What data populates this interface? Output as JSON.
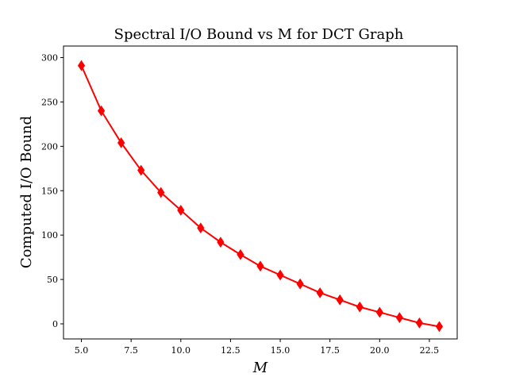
{
  "chart_data": {
    "type": "line",
    "title": "Spectral I/O Bound vs M for DCT Graph",
    "xlabel": "M",
    "ylabel": "Computed I/O Bound",
    "xlim": [
      4.1,
      23.9
    ],
    "ylim": [
      -17,
      313
    ],
    "xticks": [
      5.0,
      7.5,
      10.0,
      12.5,
      15.0,
      17.5,
      20.0,
      22.5
    ],
    "xtick_labels": [
      "5.0",
      "7.5",
      "10.0",
      "12.5",
      "15.0",
      "17.5",
      "20.0",
      "22.5"
    ],
    "yticks": [
      0,
      50,
      100,
      150,
      200,
      250,
      300
    ],
    "ytick_labels": [
      "0",
      "50",
      "100",
      "150",
      "200",
      "250",
      "300"
    ],
    "grid": false,
    "series": [
      {
        "color": "#ff0000",
        "marker": "diamond",
        "x": [
          5,
          6,
          7,
          8,
          9,
          10,
          11,
          12,
          13,
          14,
          15,
          16,
          17,
          18,
          19,
          20,
          21,
          22,
          23
        ],
        "y": [
          291,
          240,
          204,
          173,
          148,
          128,
          108,
          92,
          78,
          65,
          55,
          45,
          35,
          27,
          19,
          13,
          7,
          1,
          -3
        ]
      }
    ]
  }
}
